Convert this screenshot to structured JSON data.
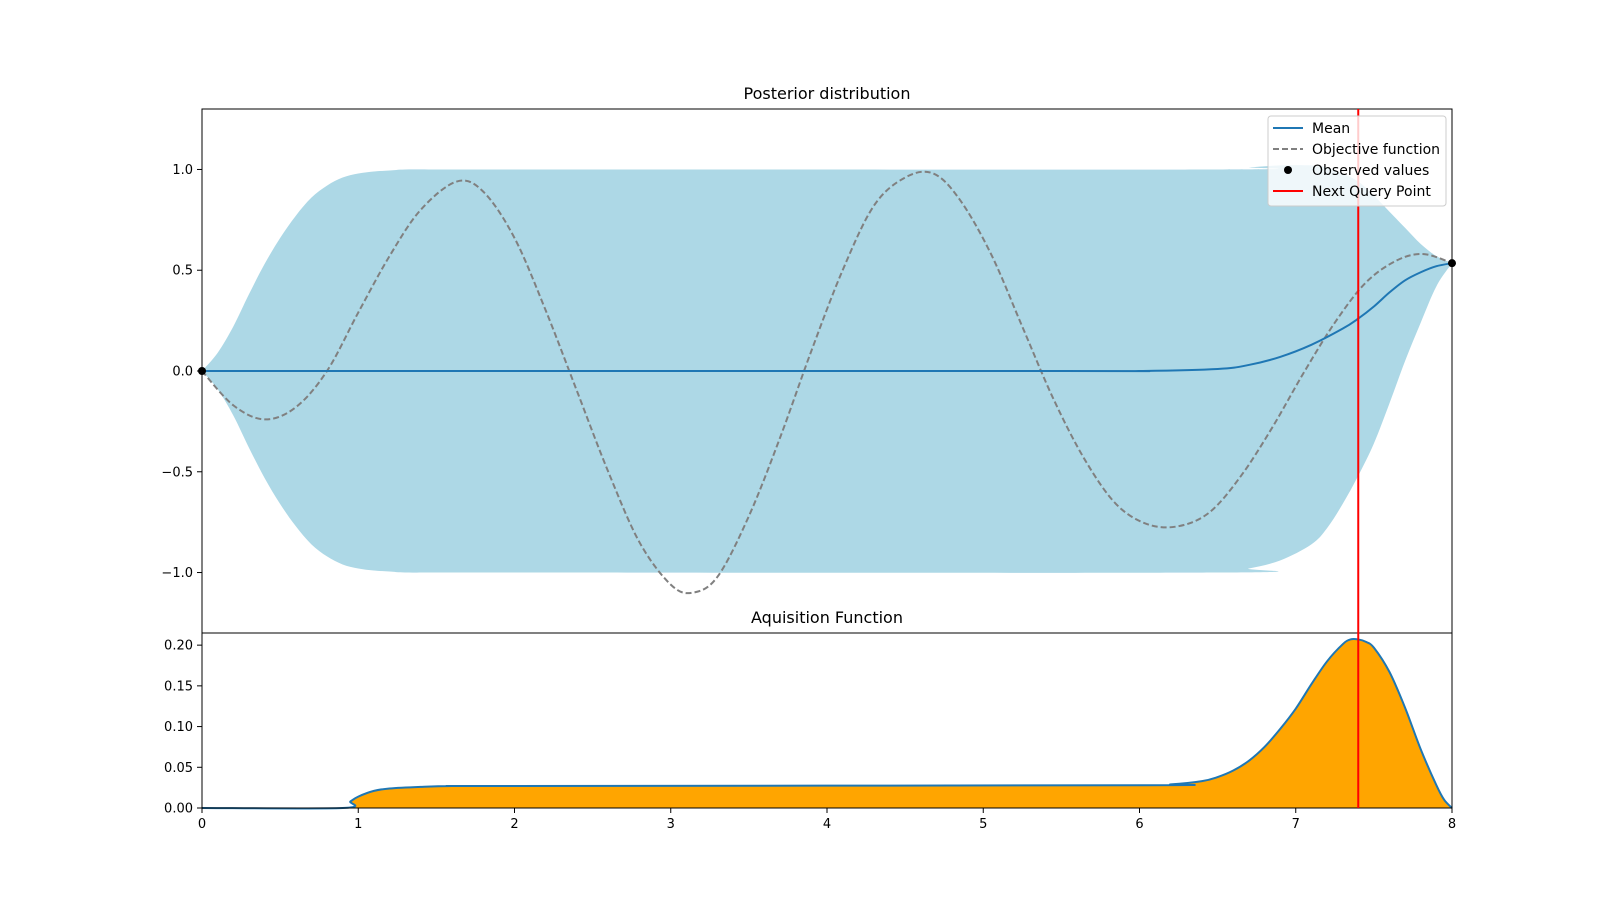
{
  "chart_data": [
    {
      "type": "line",
      "title": "Posterior distribution",
      "xlim": [
        0,
        8
      ],
      "ylim": [
        -1.3,
        1.3
      ],
      "xticks": [],
      "yticks": [
        -1.0,
        -0.5,
        0.0,
        0.5,
        1.0
      ],
      "ytick_labels": [
        "−1.0",
        "−0.5",
        "0.0",
        "0.5",
        "1.0"
      ],
      "observed_x": [
        0,
        8
      ],
      "observed_y": [
        0.0,
        0.535
      ],
      "next_query_x": 7.4,
      "mean": {
        "x": [
          0,
          5.5,
          6.0,
          6.5,
          6.7,
          6.9,
          7.1,
          7.3,
          7.4,
          7.5,
          7.6,
          7.7,
          7.8,
          7.9,
          8.0
        ],
        "y": [
          0,
          0,
          0.0,
          0.01,
          0.03,
          0.07,
          0.13,
          0.21,
          0.26,
          0.32,
          0.39,
          0.45,
          0.49,
          0.52,
          0.535
        ]
      },
      "band": {
        "x": [
          0,
          0.1,
          0.2,
          0.3,
          0.4,
          0.5,
          0.6,
          0.7,
          0.8,
          0.9,
          1.0,
          1.1,
          1.2,
          1.3,
          1.5,
          2.0,
          6.5,
          6.7,
          6.9,
          7.1,
          7.2,
          7.3,
          7.4,
          7.5,
          7.6,
          7.7,
          7.8,
          7.9,
          8.0
        ],
        "upper": [
          0,
          0.09,
          0.22,
          0.38,
          0.53,
          0.66,
          0.77,
          0.86,
          0.92,
          0.96,
          0.98,
          0.99,
          0.995,
          1.0,
          1.0,
          1.0,
          1.0,
          1.01,
          1.02,
          1.02,
          1.01,
          0.98,
          0.94,
          0.87,
          0.79,
          0.71,
          0.63,
          0.57,
          0.535
        ],
        "lower": [
          0,
          -0.09,
          -0.22,
          -0.38,
          -0.53,
          -0.66,
          -0.77,
          -0.86,
          -0.92,
          -0.96,
          -0.98,
          -0.99,
          -0.995,
          -1.0,
          -1.0,
          -1.0,
          -1.0,
          -0.98,
          -0.94,
          -0.86,
          -0.78,
          -0.66,
          -0.52,
          -0.36,
          -0.16,
          0.05,
          0.24,
          0.42,
          0.535
        ]
      },
      "legend": [
        "Mean",
        "Objective function",
        "Observed values",
        "Next Query Point"
      ],
      "legend_position": "upper right",
      "colors": {
        "mean": "#1f77b4",
        "objective": "#808080",
        "band": "#add8e6",
        "observed": "#000000",
        "query": "#ff0000"
      }
    },
    {
      "type": "area",
      "title": "Aquisition Function",
      "xlim": [
        0,
        8
      ],
      "ylim": [
        0,
        0.21
      ],
      "xticks": [
        0,
        1,
        2,
        3,
        4,
        5,
        6,
        7,
        8
      ],
      "xtick_labels": [
        "0",
        "1",
        "2",
        "3",
        "4",
        "5",
        "6",
        "7",
        "8"
      ],
      "yticks": [
        0.0,
        0.05,
        0.1,
        0.15,
        0.2
      ],
      "ytick_labels": [
        "0.00",
        "0.05",
        "0.10",
        "0.15",
        "0.20"
      ],
      "x": [
        0,
        0.9,
        0.95,
        1.0,
        1.1,
        1.2,
        1.4,
        1.6,
        2.0,
        6.0,
        6.2,
        6.4,
        6.5,
        6.6,
        6.7,
        6.8,
        6.9,
        7.0,
        7.1,
        7.2,
        7.3,
        7.35,
        7.4,
        7.45,
        7.5,
        7.6,
        7.7,
        7.8,
        7.9,
        7.95,
        8.0
      ],
      "y": [
        0,
        0,
        0.008,
        0.014,
        0.021,
        0.024,
        0.026,
        0.027,
        0.027,
        0.028,
        0.029,
        0.033,
        0.038,
        0.046,
        0.058,
        0.075,
        0.097,
        0.122,
        0.152,
        0.18,
        0.201,
        0.207,
        0.207,
        0.204,
        0.197,
        0.167,
        0.123,
        0.072,
        0.028,
        0.01,
        0.0
      ],
      "next_query_x": 7.4,
      "colors": {
        "line": "#1f77b4",
        "fill": "#ffa500",
        "query": "#ff0000"
      }
    }
  ]
}
